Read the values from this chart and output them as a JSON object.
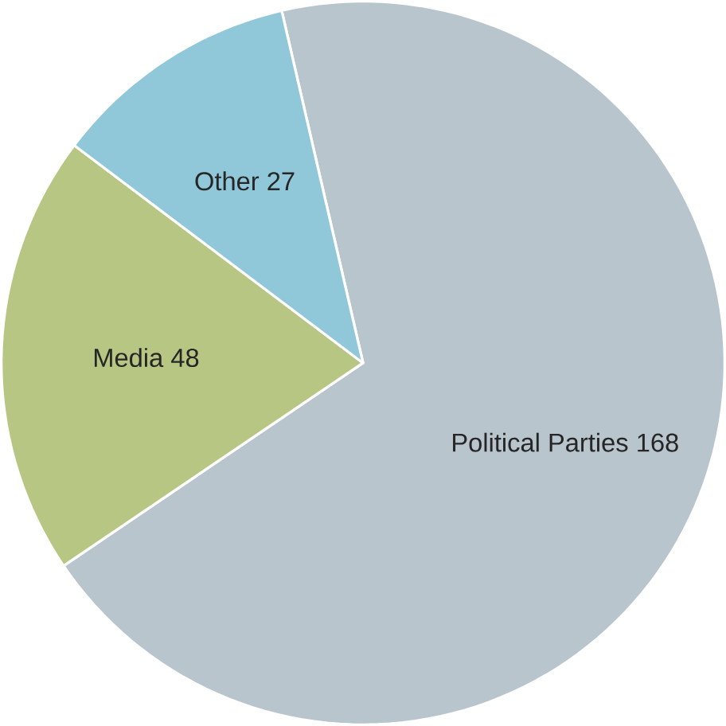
{
  "chart_data": {
    "type": "pie",
    "categories": [
      "Political Parties",
      "Media",
      "Other"
    ],
    "values": [
      168,
      48,
      27
    ],
    "colors": [
      "#b9c5cd",
      "#b7c682",
      "#90c8da"
    ],
    "data_labels": true
  }
}
